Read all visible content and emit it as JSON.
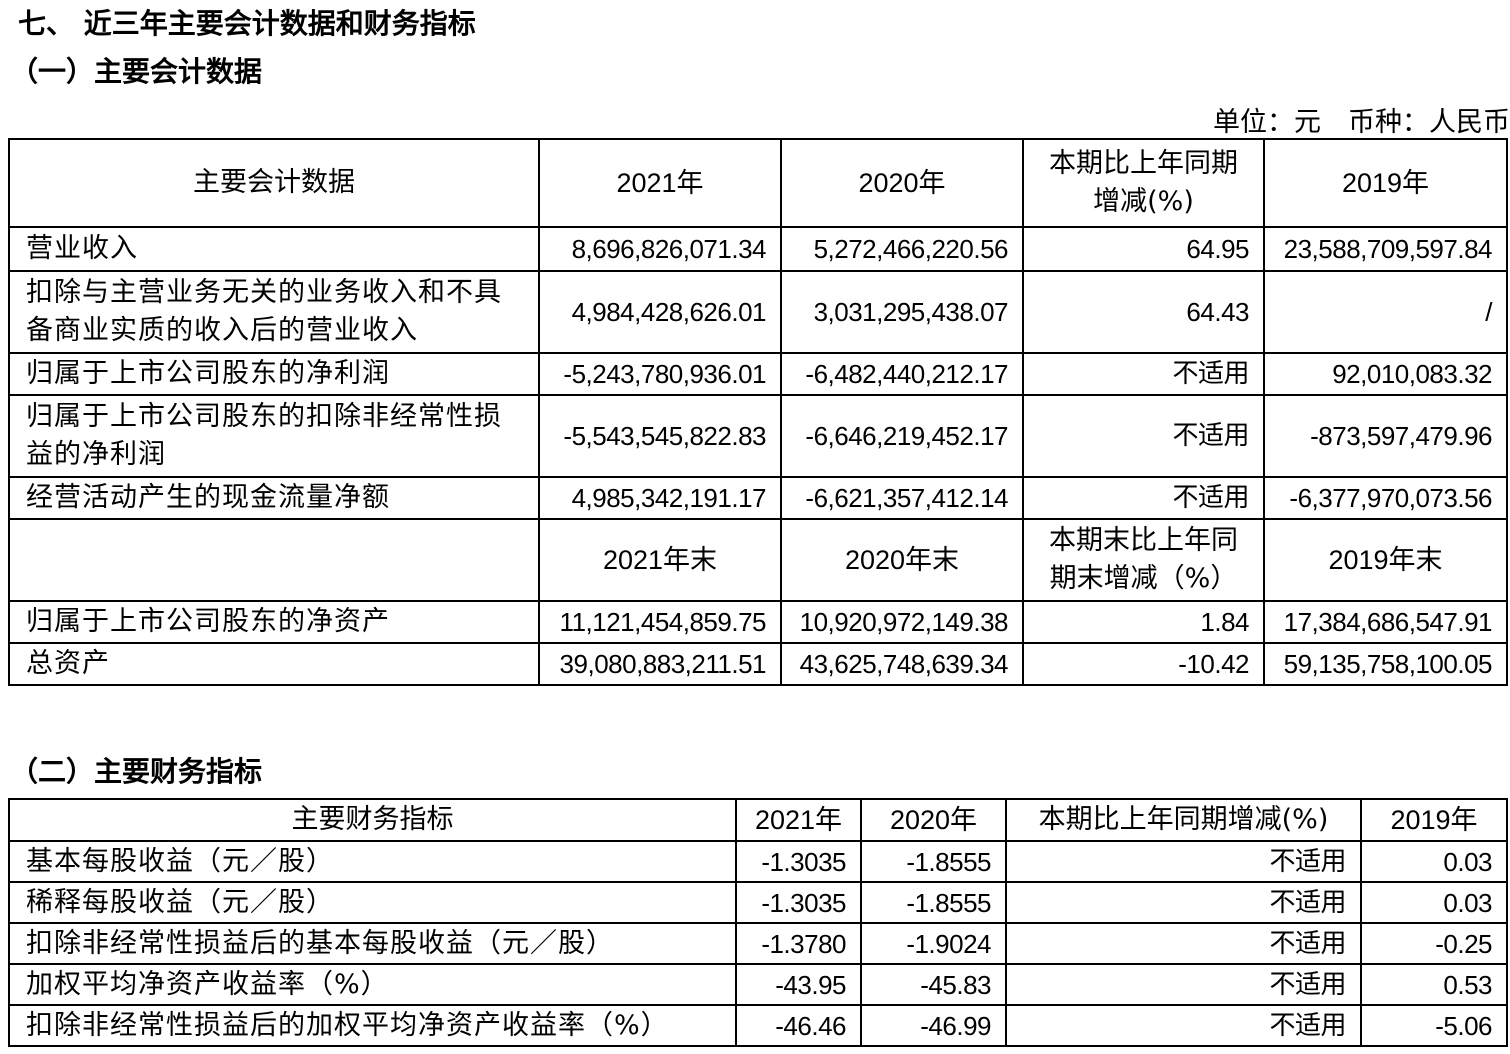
{
  "heading": "七、 近三年主要会计数据和财务指标",
  "accounting": {
    "title": "（一）主要会计数据",
    "unit": "单位：元　币种：人民币",
    "header": [
      "主要会计数据",
      "2021年",
      "2020年",
      "本期比上年同期增减(%)",
      "2019年"
    ],
    "rows": [
      [
        "营业收入",
        "8,696,826,071.34",
        "5,272,466,220.56",
        "64.95",
        "23,588,709,597.84"
      ],
      [
        "扣除与主营业务无关的业务收入和不具备商业实质的收入后的营业收入",
        "4,984,428,626.01",
        "3,031,295,438.07",
        "64.43",
        "/"
      ],
      [
        "归属于上市公司股东的净利润",
        "-5,243,780,936.01",
        "-6,482,440,212.17",
        "不适用",
        "92,010,083.32"
      ],
      [
        "归属于上市公司股东的扣除非经常性损益的净利润",
        "-5,543,545,822.83",
        "-6,646,219,452.17",
        "不适用",
        "-873,597,479.96"
      ],
      [
        "经营活动产生的现金流量净额",
        "4,985,342,191.17",
        "-6,621,357,412.14",
        "不适用",
        "-6,377,970,073.56"
      ]
    ],
    "period_end_header": [
      "2021年末",
      "2020年末",
      "本期末比上年同期末增减（%）",
      "2019年末"
    ],
    "period_end_rows": [
      [
        "归属于上市公司股东的净资产",
        "11,121,454,859.75",
        "10,920,972,149.38",
        "1.84",
        "17,384,686,547.91"
      ],
      [
        "总资产",
        "39,080,883,211.51",
        "43,625,748,639.34",
        "-10.42",
        "59,135,758,100.05"
      ]
    ]
  },
  "indicators": {
    "title": "（二）主要财务指标",
    "header": [
      "主要财务指标",
      "2021年",
      "2020年",
      "本期比上年同期增减(%)",
      "2019年"
    ],
    "rows": [
      [
        "基本每股收益（元／股）",
        "-1.3035",
        "-1.8555",
        "不适用",
        "0.03"
      ],
      [
        "稀释每股收益（元／股）",
        "-1.3035",
        "-1.8555",
        "不适用",
        "0.03"
      ],
      [
        "扣除非经常性损益后的基本每股收益（元／股）",
        "-1.3780",
        "-1.9024",
        "不适用",
        "-0.25"
      ],
      [
        "加权平均净资产收益率（%）",
        "-43.95",
        "-45.83",
        "不适用",
        "0.53"
      ],
      [
        "扣除非经常性损益后的加权平均净资产收益率（%）",
        "-46.46",
        "-46.99",
        "不适用",
        "-5.06"
      ]
    ]
  }
}
